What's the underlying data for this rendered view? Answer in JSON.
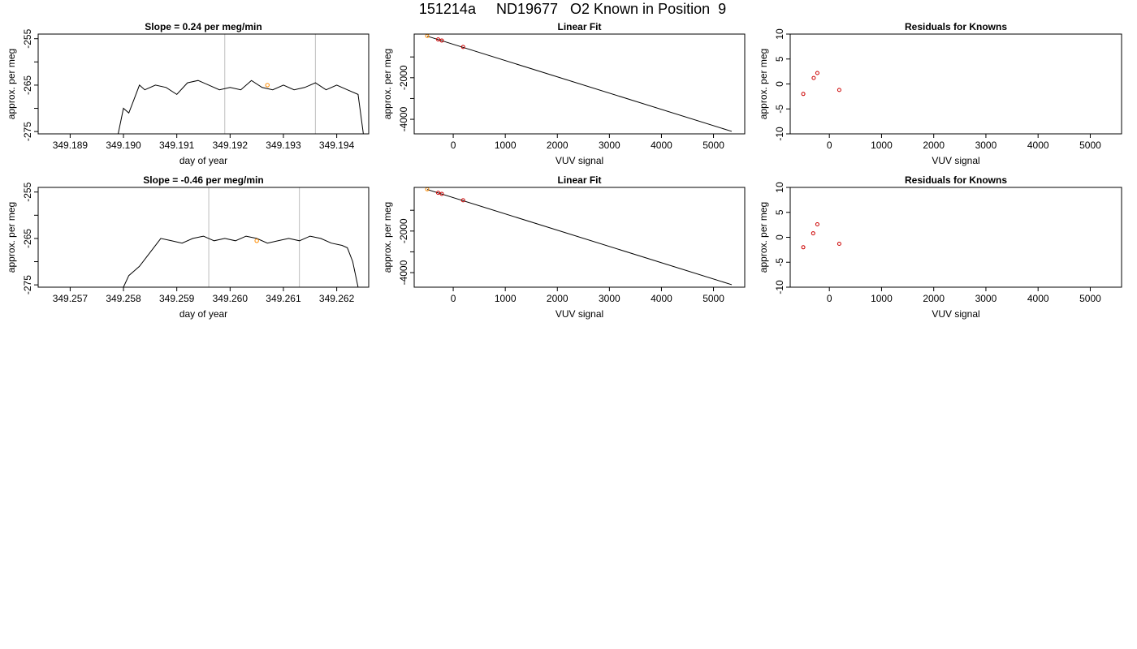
{
  "title": "151214a     ND19677   O2 Known in Position  9",
  "colors": {
    "trace": "#000000",
    "marker_orange": "#ff8c00",
    "marker_red": "#cc0000",
    "vline": "#bebebe",
    "frame": "#000000"
  },
  "chart_data": [
    {
      "type": "line",
      "title": "Slope =  0.24  per meg/min",
      "xlabel": "day of year",
      "ylabel": "approx. per meg",
      "xlim": [
        349.1884,
        349.1946
      ],
      "ylim": [
        -275.5,
        -254
      ],
      "xticks": [
        "349.189",
        "349.190",
        "349.191",
        "349.192",
        "349.193",
        "349.194"
      ],
      "xtick_values": [
        349.189,
        349.19,
        349.191,
        349.192,
        349.193,
        349.194
      ],
      "yticks": [
        "-275",
        "-265",
        "-255"
      ],
      "ytick_values": [
        -275,
        -265,
        -255
      ],
      "yminor": [
        -270,
        -260
      ],
      "vlines": [
        349.1919,
        349.1936
      ],
      "trace_start": 349.1899,
      "trace_end": 349.1945,
      "x": [
        349.1899,
        349.19,
        349.1901,
        349.1902,
        349.1903,
        349.1904,
        349.1906,
        349.1908,
        349.191,
        349.1912,
        349.1914,
        349.1916,
        349.1918,
        349.192,
        349.1922,
        349.1924,
        349.1926,
        349.1928,
        349.193,
        349.1932,
        349.1934,
        349.1936,
        349.1938,
        349.194,
        349.1942,
        349.1944,
        349.1945
      ],
      "y": [
        -275.5,
        -270,
        -271,
        -268,
        -265,
        -266,
        -265,
        -265.5,
        -267,
        -264.5,
        -264,
        -265,
        -266,
        -265.5,
        -266,
        -264,
        -265.5,
        -266,
        -265,
        -266,
        -265.5,
        -264.5,
        -266,
        -265,
        -266,
        -267,
        -275.5
      ],
      "markers": [
        {
          "x": 349.1927,
          "y": -265,
          "color": "#ff8c00"
        }
      ]
    },
    {
      "type": "scatter",
      "title": "Linear Fit",
      "xlabel": "VUV signal",
      "ylabel": "approx. per meg",
      "xlim": [
        -750,
        5600
      ],
      "ylim": [
        -4700,
        100
      ],
      "xticks": [
        "0",
        "1000",
        "2000",
        "3000",
        "4000",
        "5000"
      ],
      "xtick_values": [
        0,
        1000,
        2000,
        3000,
        4000,
        5000
      ],
      "yticks": [
        "-4000",
        "-2000"
      ],
      "ytick_values": [
        -4000,
        -2000
      ],
      "yminor": [
        -3000,
        -1000
      ],
      "fit_line": {
        "x": [
          -500,
          5350
        ],
        "y": [
          0,
          -4580
        ]
      },
      "points": [
        {
          "x": -500,
          "y": 10,
          "color": "#ff8c00"
        },
        {
          "x": -290,
          "y": -160,
          "color": "#cc0000"
        },
        {
          "x": -220,
          "y": -210,
          "color": "#cc0000"
        },
        {
          "x": 190,
          "y": -520,
          "color": "#cc0000"
        }
      ]
    },
    {
      "type": "scatter",
      "title": "Residuals for Knowns",
      "xlabel": "VUV signal",
      "ylabel": "approx. per meg",
      "xlim": [
        -750,
        5600
      ],
      "ylim": [
        -10,
        10
      ],
      "xticks": [
        "0",
        "1000",
        "2000",
        "3000",
        "4000",
        "5000"
      ],
      "xtick_values": [
        0,
        1000,
        2000,
        3000,
        4000,
        5000
      ],
      "yticks": [
        "-10",
        "-5",
        "0",
        "5",
        "10"
      ],
      "ytick_values": [
        -10,
        -5,
        0,
        5,
        10
      ],
      "points": [
        {
          "x": -500,
          "y": -2,
          "color": "#cc0000"
        },
        {
          "x": -300,
          "y": 1.2,
          "color": "#cc0000"
        },
        {
          "x": -230,
          "y": 2.2,
          "color": "#cc0000"
        },
        {
          "x": 190,
          "y": -1.2,
          "color": "#cc0000"
        }
      ]
    },
    {
      "type": "line",
      "title": "Slope =  -0.46  per meg/min",
      "xlabel": "day of year",
      "ylabel": "approx. per meg",
      "xlim": [
        349.2564,
        349.2626
      ],
      "ylim": [
        -275.5,
        -254
      ],
      "xticks": [
        "349.257",
        "349.258",
        "349.259",
        "349.260",
        "349.261",
        "349.262"
      ],
      "xtick_values": [
        349.257,
        349.258,
        349.259,
        349.26,
        349.261,
        349.262
      ],
      "yticks": [
        "-275",
        "-265",
        "-255"
      ],
      "ytick_values": [
        -275,
        -265,
        -255
      ],
      "yminor": [
        -270,
        -260
      ],
      "vlines": [
        349.2596,
        349.2613
      ],
      "trace_start": 349.258,
      "trace_end": 349.2624,
      "x": [
        349.258,
        349.2581,
        349.2582,
        349.2583,
        349.2585,
        349.2587,
        349.2589,
        349.2591,
        349.2593,
        349.2595,
        349.2597,
        349.2599,
        349.2601,
        349.2603,
        349.2605,
        349.2607,
        349.2609,
        349.2611,
        349.2613,
        349.2615,
        349.2617,
        349.2619,
        349.2621,
        349.2622,
        349.2623,
        349.2624
      ],
      "y": [
        -275.5,
        -273,
        -272,
        -271,
        -268,
        -265,
        -265.5,
        -266,
        -265,
        -264.5,
        -265.5,
        -265,
        -265.5,
        -264.5,
        -265,
        -266,
        -265.5,
        -265,
        -265.5,
        -264.5,
        -265,
        -266,
        -266.5,
        -267,
        -270,
        -275.5
      ],
      "markers": [
        {
          "x": 349.2605,
          "y": -265.5,
          "color": "#ff8c00"
        }
      ]
    },
    {
      "type": "scatter",
      "title": "Linear Fit",
      "xlabel": "VUV signal",
      "ylabel": "approx. per meg",
      "xlim": [
        -750,
        5600
      ],
      "ylim": [
        -4700,
        100
      ],
      "xticks": [
        "0",
        "1000",
        "2000",
        "3000",
        "4000",
        "5000"
      ],
      "xtick_values": [
        0,
        1000,
        2000,
        3000,
        4000,
        5000
      ],
      "yticks": [
        "-4000",
        "-2000"
      ],
      "ytick_values": [
        -4000,
        -2000
      ],
      "yminor": [
        -3000,
        -1000
      ],
      "fit_line": {
        "x": [
          -500,
          5350
        ],
        "y": [
          0,
          -4580
        ]
      },
      "points": [
        {
          "x": -500,
          "y": 10,
          "color": "#ff8c00"
        },
        {
          "x": -290,
          "y": -160,
          "color": "#cc0000"
        },
        {
          "x": -220,
          "y": -210,
          "color": "#cc0000"
        },
        {
          "x": 190,
          "y": -520,
          "color": "#cc0000"
        }
      ]
    },
    {
      "type": "scatter",
      "title": "Residuals for Knowns",
      "xlabel": "VUV signal",
      "ylabel": "approx. per meg",
      "xlim": [
        -750,
        5600
      ],
      "ylim": [
        -10,
        10
      ],
      "xticks": [
        "0",
        "1000",
        "2000",
        "3000",
        "4000",
        "5000"
      ],
      "xtick_values": [
        0,
        1000,
        2000,
        3000,
        4000,
        5000
      ],
      "yticks": [
        "-10",
        "-5",
        "0",
        "5",
        "10"
      ],
      "ytick_values": [
        -10,
        -5,
        0,
        5,
        10
      ],
      "points": [
        {
          "x": -500,
          "y": -2,
          "color": "#cc0000"
        },
        {
          "x": -310,
          "y": 0.8,
          "color": "#cc0000"
        },
        {
          "x": -230,
          "y": 2.6,
          "color": "#cc0000"
        },
        {
          "x": 190,
          "y": -1.3,
          "color": "#cc0000"
        }
      ]
    }
  ]
}
